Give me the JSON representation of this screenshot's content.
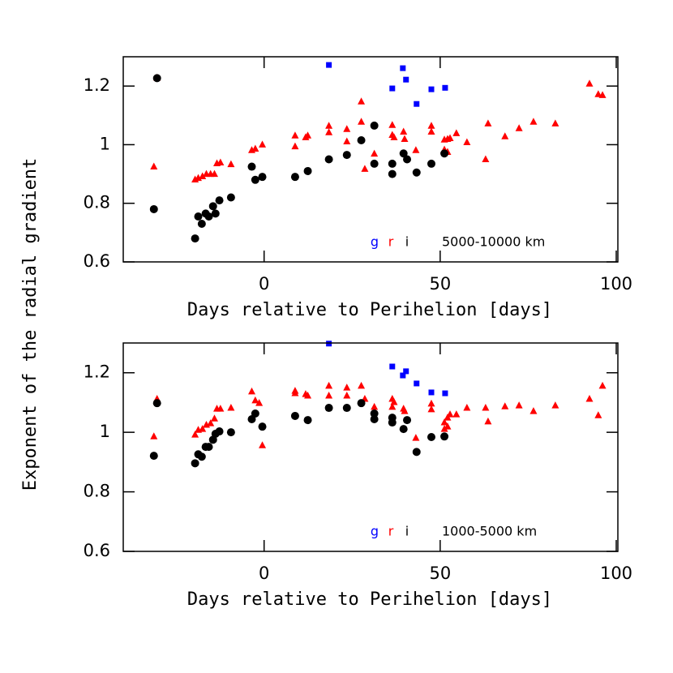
{
  "chart_data": [
    {
      "type": "scatter",
      "xlabel": "Days relative to Perihelion [days]",
      "ylabel": "Exponent of the radial gradient",
      "annotation": "5000-10000 km",
      "xlim": [
        -40,
        100
      ],
      "ylim": [
        0.6,
        1.3
      ],
      "xticks": [
        0,
        50,
        100
      ],
      "yticks": [
        0.6,
        0.8,
        1,
        1.2
      ],
      "series": [
        {
          "name": "g",
          "color": "#0000ff",
          "marker": "square",
          "x": [
            18.4,
            39.4,
            40.3,
            36.4,
            43.3,
            47.5,
            51.4
          ],
          "values": [
            1.272,
            1.261,
            1.222,
            1.192,
            1.139,
            1.189,
            1.194
          ]
        },
        {
          "name": "r",
          "color": "#ff0000",
          "marker": "triangle",
          "x": [
            -31.3,
            -30.4,
            -19.6,
            -18.7,
            -17.5,
            -16.4,
            -15.2,
            -14.1,
            -13.4,
            -12.4,
            -9.4,
            -3.5,
            -2.5,
            -0.5,
            8.8,
            8.8,
            11.8,
            12.4,
            18.4,
            18.4,
            23.5,
            23.5,
            27.6,
            27.6,
            28.6,
            31.3,
            36.4,
            36.4,
            36.9,
            39.6,
            39.9,
            43.1,
            47.5,
            47.5,
            51.2,
            51.2,
            52.1,
            52.1,
            52.8,
            54.6,
            57.6,
            62.9,
            63.6,
            68.4,
            72.4,
            76.5,
            82.7,
            92.4,
            94.9,
            96.1
          ],
          "values": [
            0.925,
            1.228,
            0.881,
            0.886,
            0.892,
            0.9,
            0.9,
            0.9,
            0.936,
            0.939,
            0.933,
            0.981,
            0.986,
            1.0,
            0.994,
            1.031,
            1.025,
            1.031,
            1.042,
            1.064,
            1.011,
            1.053,
            1.147,
            1.078,
            0.917,
            0.969,
            1.033,
            1.067,
            1.025,
            1.044,
            1.019,
            0.981,
            1.044,
            1.064,
            1.017,
            0.983,
            1.019,
            0.975,
            1.022,
            1.039,
            1.008,
            0.95,
            1.072,
            1.028,
            1.056,
            1.078,
            1.072,
            1.208,
            1.172,
            1.169
          ]
        },
        {
          "name": "i",
          "color": "#000000",
          "marker": "circle",
          "x": [
            -31.3,
            -30.4,
            -19.6,
            -18.7,
            -17.7,
            -16.6,
            -15.7,
            -14.5,
            -13.8,
            -12.7,
            -9.4,
            -3.5,
            -2.5,
            -0.5,
            8.8,
            12.4,
            18.4,
            23.5,
            27.6,
            31.3,
            31.3,
            36.4,
            36.4,
            39.6,
            40.6,
            43.3,
            47.5,
            51.2
          ],
          "values": [
            0.78,
            1.227,
            0.68,
            0.755,
            0.73,
            0.765,
            0.755,
            0.79,
            0.765,
            0.81,
            0.82,
            0.925,
            0.88,
            0.89,
            0.89,
            0.91,
            0.95,
            0.965,
            1.015,
            1.065,
            0.935,
            0.9,
            0.935,
            0.97,
            0.95,
            0.905,
            0.935,
            0.97
          ]
        }
      ]
    },
    {
      "type": "scatter",
      "xlabel": "Days relative to Perihelion [days]",
      "annotation": "1000-5000 km",
      "xlim": [
        -40,
        100
      ],
      "ylim": [
        0.6,
        1.3
      ],
      "xticks": [
        0,
        50,
        100
      ],
      "yticks": [
        0.6,
        0.8,
        1,
        1.2
      ],
      "series": [
        {
          "name": "g",
          "color": "#0000ff",
          "marker": "square",
          "x": [
            18.4,
            36.4,
            39.4,
            40.3,
            43.3,
            47.5,
            51.4
          ],
          "values": [
            1.298,
            1.221,
            1.191,
            1.205,
            1.164,
            1.134,
            1.131
          ]
        },
        {
          "name": "r",
          "color": "#ff0000",
          "marker": "triangle",
          "x": [
            -31.3,
            -30.4,
            -19.6,
            -18.7,
            -17.5,
            -16.4,
            -15.2,
            -14.1,
            -13.4,
            -12.4,
            -9.4,
            -3.5,
            -2.5,
            -0.5,
            -1.4,
            8.8,
            8.8,
            11.8,
            12.4,
            18.4,
            18.4,
            23.5,
            23.5,
            27.6,
            28.6,
            31.3,
            36.4,
            36.4,
            36.9,
            39.6,
            39.9,
            43.1,
            47.5,
            47.5,
            51.2,
            51.2,
            52.1,
            52.1,
            52.8,
            54.6,
            57.6,
            62.9,
            63.6,
            68.4,
            72.4,
            76.5,
            82.7,
            92.4,
            94.9,
            96.1
          ],
          "values": [
            0.986,
            1.112,
            0.992,
            1.008,
            1.011,
            1.025,
            1.03,
            1.046,
            1.079,
            1.079,
            1.082,
            1.137,
            1.107,
            0.956,
            1.098,
            1.139,
            1.131,
            1.128,
            1.123,
            1.156,
            1.123,
            1.15,
            1.123,
            1.156,
            1.112,
            1.085,
            1.112,
            1.085,
            1.101,
            1.079,
            1.071,
            0.981,
            1.096,
            1.077,
            1.033,
            1.011,
            1.049,
            1.019,
            1.06,
            1.06,
            1.082,
            1.082,
            1.036,
            1.087,
            1.09,
            1.071,
            1.09,
            1.112,
            1.057,
            1.156
          ]
        },
        {
          "name": "i",
          "color": "#000000",
          "marker": "circle",
          "x": [
            -31.3,
            -30.4,
            -19.6,
            -18.7,
            -17.7,
            -16.6,
            -15.7,
            -14.5,
            -13.8,
            -12.7,
            -9.4,
            -3.5,
            -2.5,
            -0.5,
            8.8,
            12.4,
            18.4,
            23.5,
            27.6,
            31.3,
            31.3,
            36.4,
            36.4,
            39.6,
            40.6,
            43.3,
            47.5,
            51.2
          ],
          "values": [
            0.921,
            1.098,
            0.896,
            0.926,
            0.918,
            0.951,
            0.951,
            0.975,
            0.995,
            1.003,
            1.0,
            1.044,
            1.063,
            1.019,
            1.055,
            1.041,
            1.082,
            1.082,
            1.098,
            1.063,
            1.044,
            1.049,
            1.033,
            1.011,
            1.041,
            0.934,
            0.984,
            0.986
          ]
        }
      ]
    }
  ]
}
